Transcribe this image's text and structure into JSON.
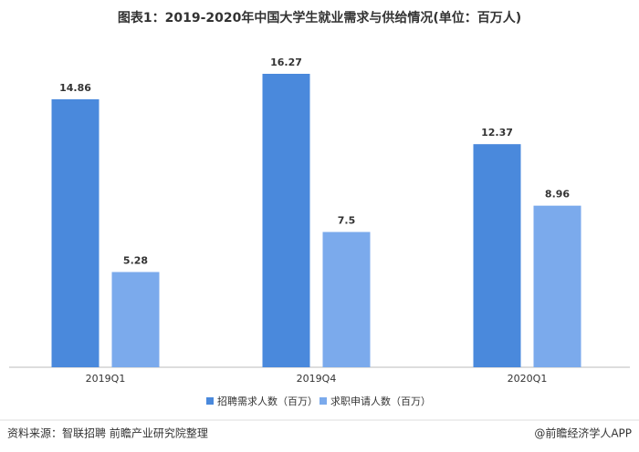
{
  "chart_data": {
    "type": "bar",
    "title": "图表1：2019-2020年中国大学生就业需求与供给情况(单位：百万人)",
    "categories": [
      "2019Q1",
      "2019Q4",
      "2020Q1"
    ],
    "series": [
      {
        "name": "招聘需求人数（百万）",
        "color": "#4a89dc",
        "values": [
          14.86,
          16.27,
          12.37
        ]
      },
      {
        "name": "求职申请人数（百万）",
        "color": "#7baaec",
        "values": [
          5.28,
          7.5,
          8.96
        ]
      }
    ],
    "source": "资料来源：智联招聘 前瞻产业研究院整理",
    "footer": "@前瞻经济学人APP"
  }
}
